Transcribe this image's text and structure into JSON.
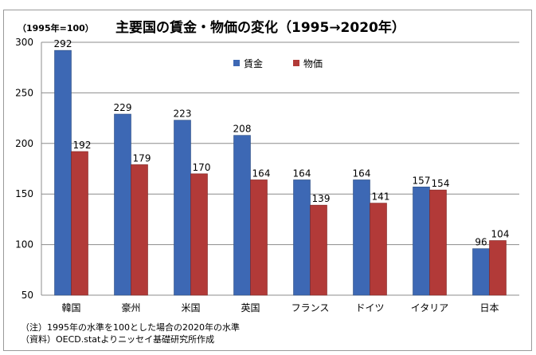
{
  "chart_data": {
    "type": "bar",
    "title": "主要国の賃金・物価の変化（1995→2020年）",
    "base_label": "（1995年=100）",
    "categories": [
      "韓国",
      "豪州",
      "米国",
      "英国",
      "フランス",
      "ドイツ",
      "イタリア",
      "日本"
    ],
    "series": [
      {
        "name": "賃金",
        "color": "#3d68b4",
        "values": [
          292,
          229,
          223,
          208,
          164,
          164,
          157,
          96
        ]
      },
      {
        "name": "物価",
        "color": "#b23a38",
        "values": [
          192,
          179,
          170,
          164,
          139,
          141,
          154,
          104
        ]
      }
    ],
    "ylim": [
      50,
      300
    ],
    "yticks": [
      50,
      100,
      150,
      200,
      250,
      300
    ],
    "grid": true,
    "legend": "top-center",
    "notes": [
      "（注）1995年の水準を100とした場合の2020年の水準",
      "（資料）OECD.statよりニッセイ基礎研究所作成"
    ]
  }
}
